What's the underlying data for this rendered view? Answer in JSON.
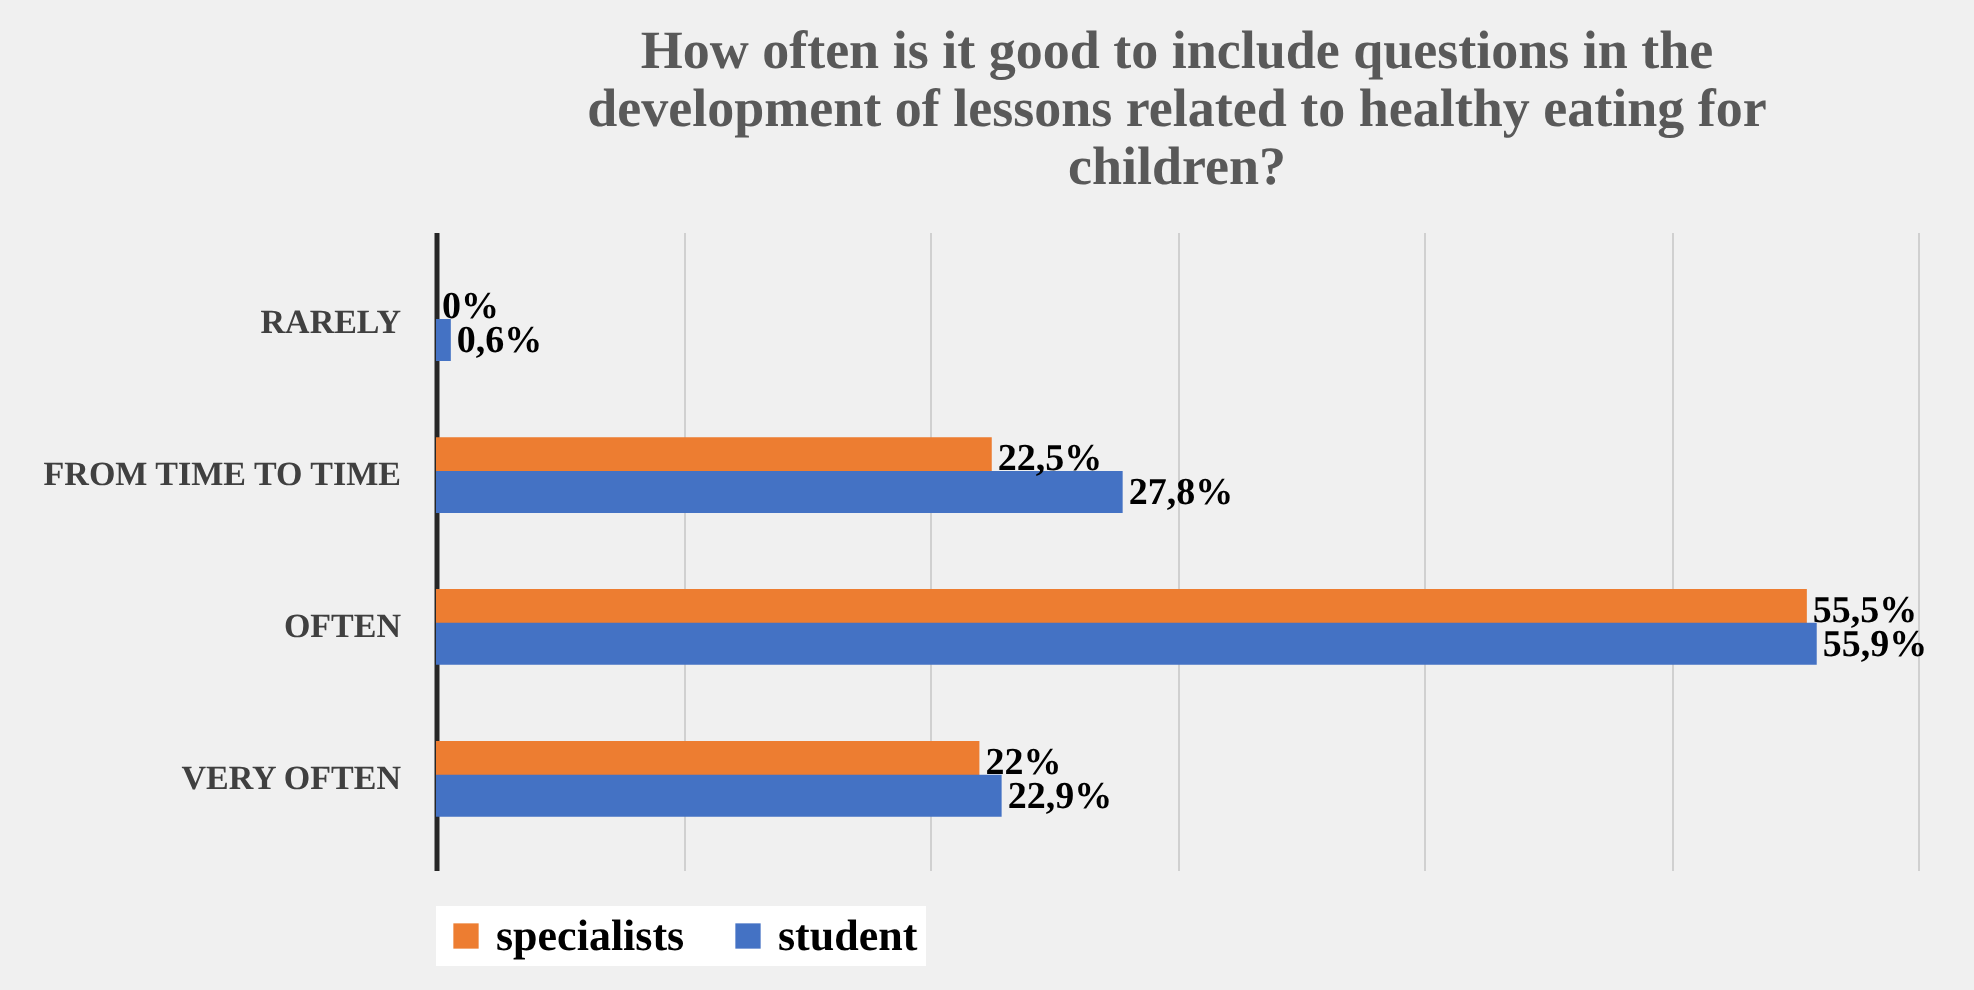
{
  "chart_data": {
    "type": "bar",
    "orientation": "horizontal",
    "title": "How often is it good to include questions in the development of lessons related to healthy eating for children?",
    "categories": [
      "RARELY",
      "FROM TIME TO TIME",
      "OFTEN",
      "VERY OFTEN"
    ],
    "series": [
      {
        "name": "specialists",
        "color": "#ed7d31",
        "values": [
          0,
          22.5,
          55.5,
          22
        ],
        "value_labels": [
          "0%",
          "22,5%",
          "55,5%",
          "22%"
        ]
      },
      {
        "name": "student",
        "color": "#4472c4",
        "values": [
          0.6,
          27.8,
          55.9,
          22.9
        ],
        "value_labels": [
          "0,6%",
          "27,8%",
          "55,9%",
          "22,9%"
        ]
      }
    ],
    "xlim": [
      0,
      60
    ],
    "xticks": [
      {
        "value": 0,
        "label": null
      },
      {
        "value": 10,
        "label": null
      },
      {
        "value": 20,
        "label": null
      },
      {
        "value": 30,
        "label": null
      },
      {
        "value": 40,
        "label": null
      },
      {
        "value": 50,
        "label": null
      },
      {
        "value": 60,
        "label": null
      }
    ],
    "tick_labels": "y",
    "grid": "x",
    "legend": "bottom"
  }
}
